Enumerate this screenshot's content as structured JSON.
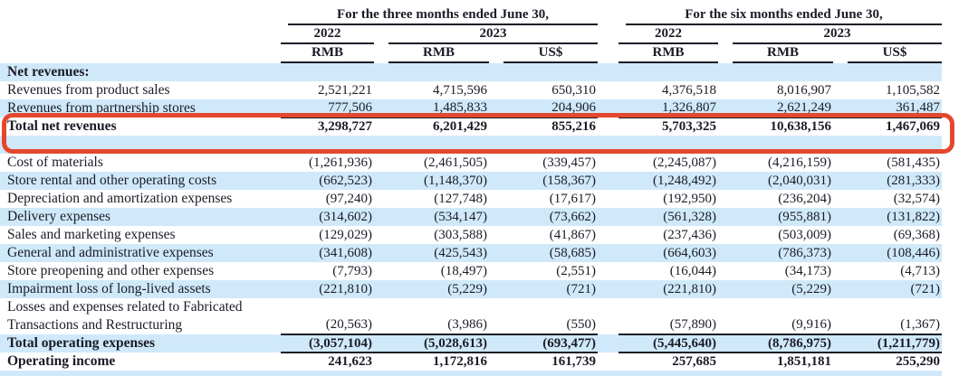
{
  "page": {
    "background": "#ffffff",
    "text_color": "#1b1b26",
    "stripe_blue": "#cfe9fa",
    "accent_red": "#e4472e"
  },
  "table": {
    "group_headers": [
      "For the three months ended June 30,",
      "For the six months ended June 30,"
    ],
    "year_headers": [
      "2022",
      "2023",
      "2022",
      "2023"
    ],
    "currency_headers": [
      "RMB",
      "RMB",
      "US$",
      "RMB",
      "RMB",
      "US$"
    ],
    "rows": [
      {
        "label": "Net revenues:",
        "values": [
          "",
          "",
          "",
          "",
          "",
          ""
        ],
        "bold": true,
        "shaded": true,
        "rule_below": false
      },
      {
        "label": "Revenues from product sales",
        "values": [
          "2,521,221",
          "4,715,596",
          "650,310",
          "4,376,518",
          "8,016,907",
          "1,105,582"
        ],
        "bold": false,
        "shaded": false,
        "rule_below": false
      },
      {
        "label": "Revenues from partnership stores",
        "values": [
          "777,506",
          "1,485,833",
          "204,906",
          "1,326,807",
          "2,621,249",
          "361,487"
        ],
        "bold": false,
        "shaded": true,
        "rule_below": true
      },
      {
        "label": "Total net revenues",
        "values": [
          "3,298,727",
          "6,201,429",
          "855,216",
          "5,703,325",
          "10,638,156",
          "1,467,069"
        ],
        "bold": true,
        "shaded": false,
        "rule_below": false
      },
      {
        "label": "",
        "values": [
          "",
          "",
          "",
          "",
          "",
          ""
        ],
        "bold": false,
        "shaded": true,
        "rule_below": false
      },
      {
        "label": "Cost of materials",
        "values": [
          "(1,261,936)",
          "(2,461,505)",
          "(339,457)",
          "(2,245,087)",
          "(4,216,159)",
          "(581,435)"
        ],
        "bold": false,
        "shaded": false,
        "rule_below": false
      },
      {
        "label": "Store rental and other operating costs",
        "values": [
          "(662,523)",
          "(1,148,370)",
          "(158,367)",
          "(1,248,492)",
          "(2,040,031)",
          "(281,333)"
        ],
        "bold": false,
        "shaded": true,
        "rule_below": false
      },
      {
        "label": "Depreciation and amortization expenses",
        "values": [
          "(97,240)",
          "(127,748)",
          "(17,617)",
          "(192,950)",
          "(236,204)",
          "(32,574)"
        ],
        "bold": false,
        "shaded": false,
        "rule_below": false
      },
      {
        "label": "Delivery expenses",
        "values": [
          "(314,602)",
          "(534,147)",
          "(73,662)",
          "(561,328)",
          "(955,881)",
          "(131,822)"
        ],
        "bold": false,
        "shaded": true,
        "rule_below": false
      },
      {
        "label": "Sales and marketing expenses",
        "values": [
          "(129,029)",
          "(303,588)",
          "(41,867)",
          "(237,436)",
          "(503,009)",
          "(69,368)"
        ],
        "bold": false,
        "shaded": false,
        "rule_below": false
      },
      {
        "label": "General and administrative expenses",
        "values": [
          "(341,608)",
          "(425,543)",
          "(58,685)",
          "(664,603)",
          "(786,373)",
          "(108,446)"
        ],
        "bold": false,
        "shaded": true,
        "rule_below": false
      },
      {
        "label": "Store preopening and other expenses",
        "values": [
          "(7,793)",
          "(18,497)",
          "(2,551)",
          "(16,044)",
          "(34,173)",
          "(4,713)"
        ],
        "bold": false,
        "shaded": false,
        "rule_below": false
      },
      {
        "label": "Impairment loss of long-lived assets",
        "values": [
          "(221,810)",
          "(5,229)",
          "(721)",
          "(221,810)",
          "(5,229)",
          "(721)"
        ],
        "bold": false,
        "shaded": true,
        "rule_below": false
      },
      {
        "label": "Losses and expenses related to Fabricated",
        "values": [
          "",
          "",
          "",
          "",
          "",
          ""
        ],
        "bold": false,
        "shaded": false,
        "rule_below": false
      },
      {
        "label": "Transactions and Restructuring",
        "values": [
          "(20,563)",
          "(3,986)",
          "(550)",
          "(57,890)",
          "(9,916)",
          "(1,367)"
        ],
        "bold": false,
        "shaded": false,
        "rule_below": true
      },
      {
        "label": "Total operating expenses",
        "values": [
          "(3,057,104)",
          "(5,028,613)",
          "(693,477)",
          "(5,445,640)",
          "(8,786,975)",
          "(1,211,779)"
        ],
        "bold": true,
        "shaded": true,
        "rule_below": true
      },
      {
        "label": "Operating income",
        "values": [
          "241,623",
          "1,172,816",
          "161,739",
          "257,685",
          "1,851,181",
          "255,290"
        ],
        "bold": true,
        "shaded": false,
        "rule_below": false
      },
      {
        "label": "",
        "values": [
          "",
          "",
          "",
          "",
          "",
          ""
        ],
        "bold": false,
        "shaded": true,
        "rule_below": false
      }
    ],
    "highlight": {
      "annotated_row": "Total net revenues",
      "color": "#e4472e"
    }
  }
}
